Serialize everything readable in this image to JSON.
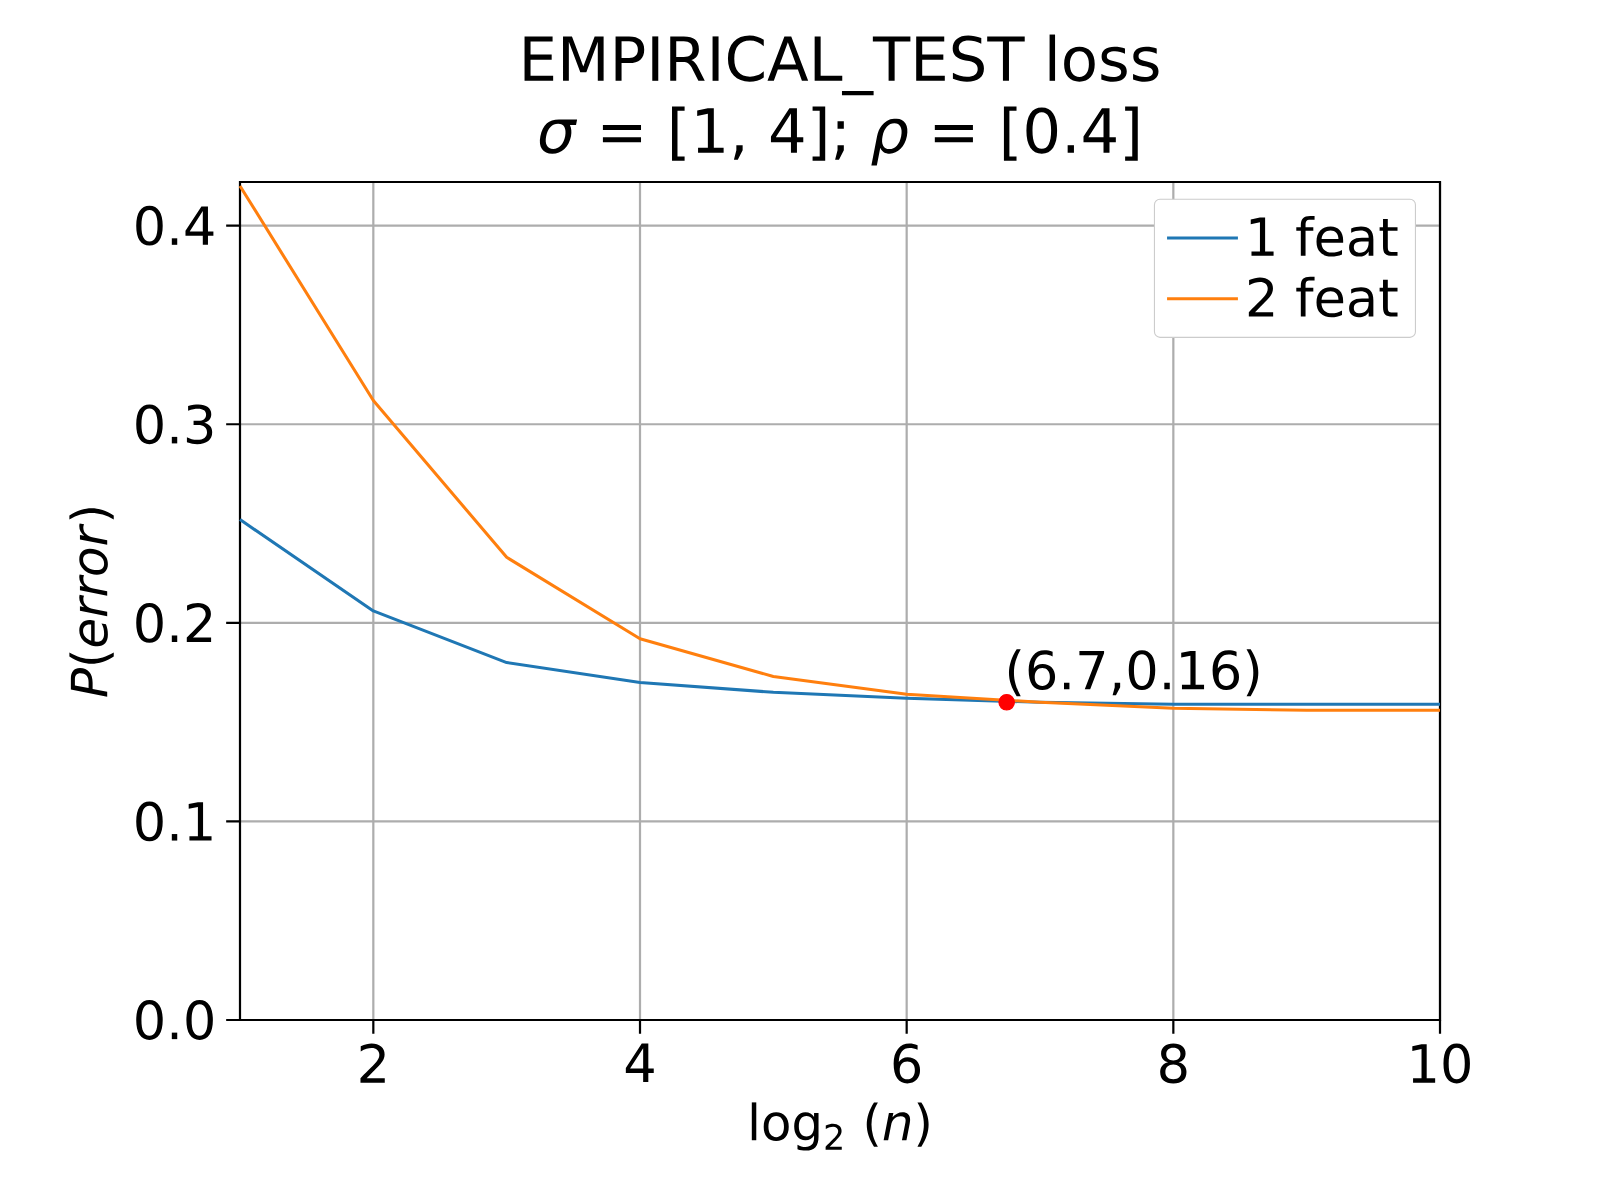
{
  "chart_data": {
    "type": "line",
    "title": "EMPIRICAL_TEST loss",
    "subtitle": "*σ* = [1, 4];  *ρ* = [0.4]",
    "xlabel": "log$_{2}$ (*n*)",
    "ylabel": "*P*(*error*)",
    "x": [
      1,
      2,
      3,
      4,
      5,
      6,
      7,
      8,
      9,
      10
    ],
    "series": [
      {
        "name": "1 feat",
        "color": "#1f77b4",
        "values": [
          0.252,
          0.206,
          0.18,
          0.17,
          0.165,
          0.162,
          0.16,
          0.159,
          0.159,
          0.159
        ]
      },
      {
        "name": "2 feat",
        "color": "#ff7f0e",
        "values": [
          0.42,
          0.312,
          0.233,
          0.192,
          0.173,
          0.164,
          0.16,
          0.157,
          0.156,
          0.156
        ]
      },
      {
        "type": "scatter",
        "color": "#ff0000",
        "marker": "circle",
        "x": [
          6.75
        ],
        "values": [
          0.16
        ]
      }
    ],
    "annotations": [
      {
        "text": "(6.7,0.16)",
        "x": 6.75,
        "y": 0.16
      }
    ],
    "xlim": [
      1,
      10
    ],
    "ylim": [
      0,
      0.422
    ],
    "xticks": [
      2,
      4,
      6,
      8,
      10
    ],
    "yticks": [
      {
        "value": 0,
        "label": "0.0"
      },
      0.1,
      0.2,
      0.3,
      0.4
    ],
    "grid": true,
    "legend": "top right",
    "marker": "none",
    "line_style": "solid"
  }
}
